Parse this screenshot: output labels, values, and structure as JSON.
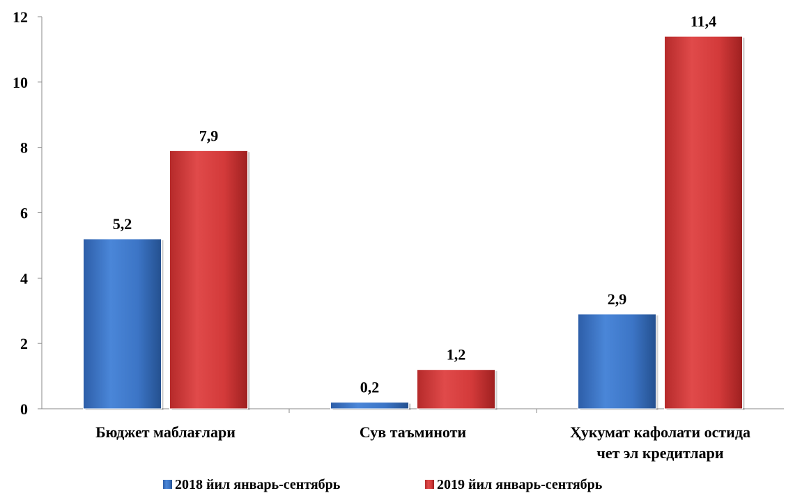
{
  "chart_data": {
    "type": "bar",
    "categories": [
      [
        "Бюджет маблағлари"
      ],
      [
        "Сув таъминоти"
      ],
      [
        "Ҳукумат кафолати остида",
        "чет эл кредитлари"
      ]
    ],
    "series": [
      {
        "name": "2018 йил январь-сентябрь",
        "values": [
          5.2,
          0.2,
          2.9
        ],
        "labels": [
          "5,2",
          "0,2",
          "2,9"
        ],
        "color": "#3c75c6"
      },
      {
        "name": "2019 йил январь-сентябрь",
        "values": [
          7.9,
          1.2,
          11.4
        ],
        "labels": [
          "7,9",
          "1,2",
          "11,4"
        ],
        "color": "#d33a3a"
      }
    ],
    "yticks": [
      0,
      2,
      4,
      6,
      8,
      10,
      12
    ],
    "ylim": [
      0,
      12
    ],
    "grid": false,
    "legend_position": "bottom"
  }
}
